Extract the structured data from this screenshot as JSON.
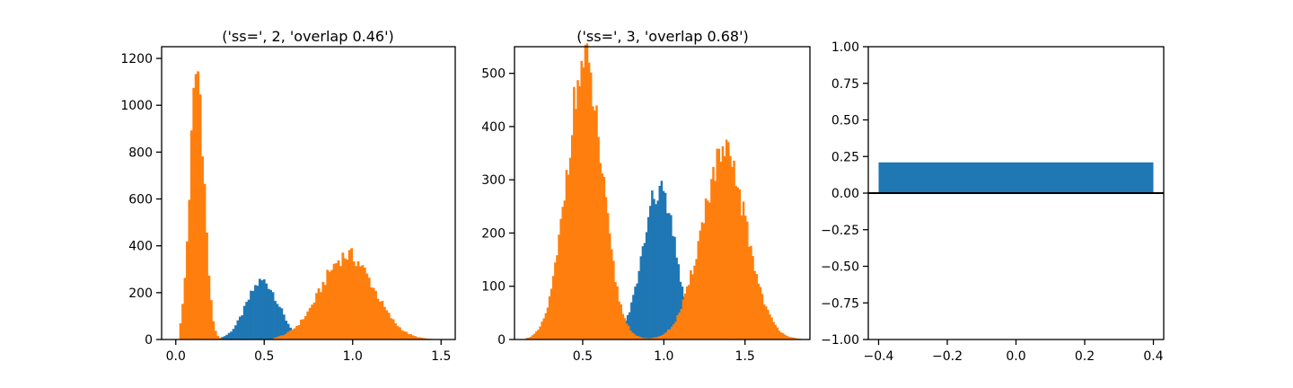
{
  "colors": {
    "series_a": "#1f77b4",
    "series_b": "#ff7f0e",
    "axis": "#000000"
  },
  "chart_data": [
    {
      "type": "bar",
      "subtype": "histogram-overlay",
      "title": "('ss=', 2, 'overlap 0.46')",
      "xlim": [
        -0.08,
        1.58
      ],
      "ylim": [
        0,
        1250
      ],
      "xticks": [
        0.0,
        0.5,
        1.0,
        1.5
      ],
      "xtick_labels": [
        "0.0",
        "0.5",
        "1.0",
        "1.5"
      ],
      "yticks": [
        0,
        200,
        400,
        600,
        800,
        1000,
        1200
      ],
      "ytick_labels": [
        "0",
        "200",
        "400",
        "600",
        "800",
        "1000",
        "1200"
      ],
      "bin_width": 0.0124,
      "series": [
        {
          "color": "#1f77b4",
          "components": [
            {
              "mean": 0.49,
              "sd": 0.09,
              "peak": 250,
              "lo": 0.22,
              "hi": 0.73
            }
          ]
        },
        {
          "color": "#ff7f0e",
          "components": [
            {
              "mean": 0.12,
              "sd": 0.04,
              "peak": 1150,
              "lo": 0.02,
              "hi": 0.3
            },
            {
              "mean": 0.97,
              "sd": 0.15,
              "peak": 360,
              "lo": 0.55,
              "hi": 1.48
            }
          ]
        }
      ]
    },
    {
      "type": "bar",
      "subtype": "histogram-overlay",
      "title": "('ss=', 3, 'overlap 0.68')",
      "xlim": [
        0.08,
        1.9
      ],
      "ylim": [
        0,
        550
      ],
      "xticks": [
        0.5,
        1.0,
        1.5
      ],
      "xtick_labels": [
        "0.5",
        "1.0",
        "1.5"
      ],
      "yticks": [
        0,
        100,
        200,
        300,
        400,
        500
      ],
      "ytick_labels": [
        "0",
        "100",
        "200",
        "300",
        "400",
        "500"
      ],
      "bin_width": 0.0116,
      "series": [
        {
          "color": "#1f77b4",
          "components": [
            {
              "mean": 0.97,
              "sd": 0.1,
              "peak": 280,
              "lo": 0.62,
              "hi": 1.25
            }
          ]
        },
        {
          "color": "#ff7f0e",
          "components": [
            {
              "mean": 0.51,
              "sd": 0.11,
              "peak": 515,
              "lo": 0.15,
              "hi": 1.05
            },
            {
              "mean": 1.37,
              "sd": 0.14,
              "peak": 345,
              "lo": 0.72,
              "hi": 1.84
            }
          ]
        }
      ]
    },
    {
      "type": "bar",
      "title": "",
      "xlim": [
        -0.43,
        0.43
      ],
      "ylim": [
        -1.0,
        1.0
      ],
      "xticks": [
        -0.4,
        -0.2,
        0.0,
        0.2,
        0.4
      ],
      "xtick_labels": [
        "−0.4",
        "−0.2",
        "0.0",
        "0.2",
        "0.4"
      ],
      "yticks": [
        -1.0,
        -0.75,
        -0.5,
        -0.25,
        0.0,
        0.25,
        0.5,
        0.75,
        1.0
      ],
      "ytick_labels": [
        "−1.00",
        "−0.75",
        "−0.50",
        "−0.25",
        "0.00",
        "0.25",
        "0.50",
        "0.75",
        "1.00"
      ],
      "bars": [
        {
          "x_start": -0.4,
          "x_end": 0.4,
          "value": 0.21,
          "color": "#1f77b4"
        }
      ],
      "hline": 0.0
    }
  ]
}
